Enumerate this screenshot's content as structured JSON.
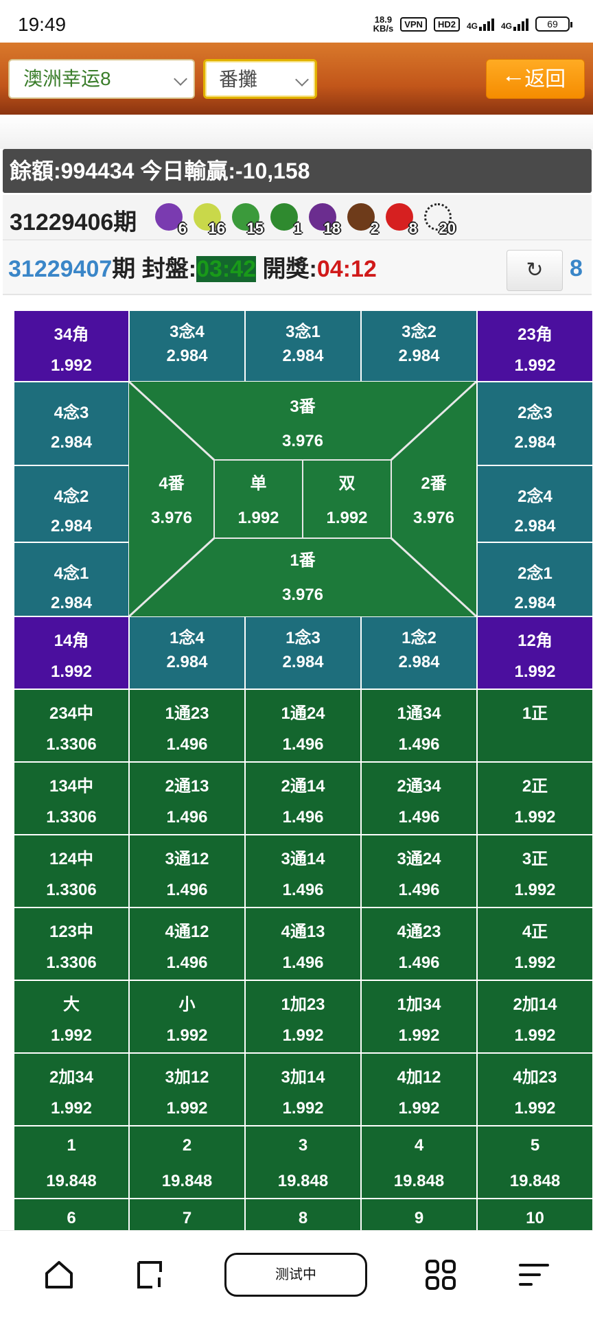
{
  "status_bar": {
    "time": "19:49",
    "speed_value": "18.9",
    "speed_unit": "KB/s",
    "vpn": "VPN",
    "hd": "HD2",
    "net1": "4G",
    "net2": "4G",
    "battery": "69"
  },
  "topbar": {
    "game_select": "澳洲幸运8",
    "mode_select": "番攤",
    "back_label": "返回"
  },
  "balance": {
    "text": "餘額:994434 今日輸贏:-10,158"
  },
  "last_draw": {
    "period": "31229406期",
    "balls": [
      {
        "fruit": "grape-icon",
        "num": "6",
        "color": "#7a3bb0"
      },
      {
        "fruit": "pear-icon",
        "num": "16",
        "color": "#c9d84a"
      },
      {
        "fruit": "cucumber-icon",
        "num": "15",
        "color": "#3b9a3b"
      },
      {
        "fruit": "watermelon-icon",
        "num": "1",
        "color": "#2f8a2f"
      },
      {
        "fruit": "eggplant-icon",
        "num": "18",
        "color": "#6b2d8f"
      },
      {
        "fruit": "coconut-icon",
        "num": "2",
        "color": "#6e3b1a"
      },
      {
        "fruit": "cherry-icon",
        "num": "8",
        "color": "#d62020"
      },
      {
        "fruit": "cow-icon",
        "num": "20",
        "color": "#f4f4f4"
      }
    ]
  },
  "current_draw": {
    "period": "31229407",
    "period_suffix": "期",
    "close_label": "封盤:",
    "close_time": "03:42",
    "open_label": "開獎:",
    "open_time": "04:12",
    "refresh_icon": "refresh-icon",
    "count": "8"
  },
  "board": {
    "corner_34": {
      "name": "34角",
      "odds": "1.992"
    },
    "corner_23": {
      "name": "23角",
      "odds": "1.992"
    },
    "corner_14": {
      "name": "14角",
      "odds": "1.992"
    },
    "corner_12": {
      "name": "12角",
      "odds": "1.992"
    },
    "top_nian": [
      {
        "name": "3念4",
        "odds": "2.984"
      },
      {
        "name": "3念1",
        "odds": "2.984"
      },
      {
        "name": "3念2",
        "odds": "2.984"
      }
    ],
    "bottom_nian": [
      {
        "name": "1念4",
        "odds": "2.984"
      },
      {
        "name": "1念3",
        "odds": "2.984"
      },
      {
        "name": "1念2",
        "odds": "2.984"
      }
    ],
    "left_nian": [
      {
        "name": "4念3",
        "odds": "2.984"
      },
      {
        "name": "4念2",
        "odds": "2.984"
      },
      {
        "name": "4念1",
        "odds": "2.984"
      }
    ],
    "right_nian": [
      {
        "name": "2念3",
        "odds": "2.984"
      },
      {
        "name": "2念4",
        "odds": "2.984"
      },
      {
        "name": "2念1",
        "odds": "2.984"
      }
    ],
    "fan": {
      "top": {
        "name": "3番",
        "odds": "3.976"
      },
      "left": {
        "name": "4番",
        "odds": "3.976"
      },
      "right": {
        "name": "2番",
        "odds": "3.976"
      },
      "bottom": {
        "name": "1番",
        "odds": "3.976"
      },
      "odd": {
        "name": "单",
        "odds": "1.992"
      },
      "even": {
        "name": "双",
        "odds": "1.992"
      }
    },
    "grid_rows": [
      [
        {
          "name": "234中",
          "odds": "1.3306"
        },
        {
          "name": "1通23",
          "odds": "1.496"
        },
        {
          "name": "1通24",
          "odds": "1.496"
        },
        {
          "name": "1通34",
          "odds": "1.496"
        },
        {
          "name": "1正",
          "odds": ""
        }
      ],
      [
        {
          "name": "134中",
          "odds": "1.3306"
        },
        {
          "name": "2通13",
          "odds": "1.496"
        },
        {
          "name": "2通14",
          "odds": "1.496"
        },
        {
          "name": "2通34",
          "odds": "1.496"
        },
        {
          "name": "2正",
          "odds": "1.992"
        }
      ],
      [
        {
          "name": "124中",
          "odds": "1.3306"
        },
        {
          "name": "3通12",
          "odds": "1.496"
        },
        {
          "name": "3通14",
          "odds": "1.496"
        },
        {
          "name": "3通24",
          "odds": "1.496"
        },
        {
          "name": "3正",
          "odds": "1.992"
        }
      ],
      [
        {
          "name": "123中",
          "odds": "1.3306"
        },
        {
          "name": "4通12",
          "odds": "1.496"
        },
        {
          "name": "4通13",
          "odds": "1.496"
        },
        {
          "name": "4通23",
          "odds": "1.496"
        },
        {
          "name": "4正",
          "odds": "1.992"
        }
      ],
      [
        {
          "name": "大",
          "odds": "1.992"
        },
        {
          "name": "小",
          "odds": "1.992"
        },
        {
          "name": "1加23",
          "odds": "1.992"
        },
        {
          "name": "1加34",
          "odds": "1.992"
        },
        {
          "name": "2加14",
          "odds": "1.992"
        }
      ],
      [
        {
          "name": "2加34",
          "odds": "1.992"
        },
        {
          "name": "3加12",
          "odds": "1.992"
        },
        {
          "name": "3加14",
          "odds": "1.992"
        },
        {
          "name": "4加12",
          "odds": "1.992"
        },
        {
          "name": "4加23",
          "odds": "1.992"
        }
      ],
      [
        {
          "name": "1",
          "odds": "19.848"
        },
        {
          "name": "2",
          "odds": "19.848"
        },
        {
          "name": "3",
          "odds": "19.848"
        },
        {
          "name": "4",
          "odds": "19.848"
        },
        {
          "name": "5",
          "odds": "19.848"
        }
      ],
      [
        {
          "name": "6",
          "odds": ""
        },
        {
          "name": "7",
          "odds": ""
        },
        {
          "name": "8",
          "odds": ""
        },
        {
          "name": "9",
          "odds": ""
        },
        {
          "name": "10",
          "odds": ""
        }
      ]
    ]
  },
  "navbar": {
    "home_icon": "home-icon",
    "tab_icon": "tab-switch-icon",
    "test_label": "测试中",
    "apps_icon": "apps-grid-icon",
    "menu_icon": "menu-icon"
  }
}
